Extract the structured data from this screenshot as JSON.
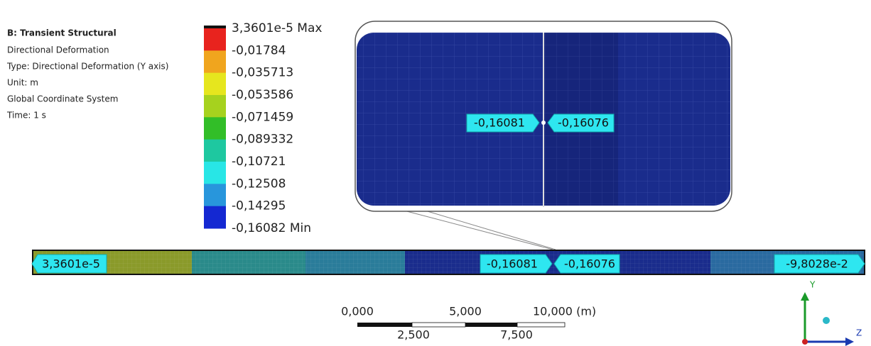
{
  "header": {
    "title": "B: Transient Structural",
    "lines": [
      "Directional Deformation",
      "Type: Directional Deformation (Y axis)",
      "Unit: m",
      "Global Coordinate System",
      "Time: 1 s"
    ]
  },
  "legend": {
    "labels": [
      "3,3601e-5 Max",
      "-0,01784",
      "-0,035713",
      "-0,053586",
      "-0,071459",
      "-0,089332",
      "-0,10721",
      "-0,12508",
      "-0,14295",
      "-0,16082 Min"
    ],
    "colors": [
      "#e8231e",
      "#f0a51e",
      "#e6e61e",
      "#a6d21e",
      "#32be28",
      "#1ec8a0",
      "#28e6e6",
      "#2896dc",
      "#1428d2"
    ]
  },
  "zoom": {
    "probes": [
      "-0,16081",
      "-0,16076"
    ]
  },
  "beam": {
    "probes": [
      "3,3601e-5",
      "-0,16081",
      "-0,16076",
      "-9,8028e-2"
    ]
  },
  "scale_bar": {
    "top_labels": [
      "0,000",
      "5,000",
      "10,000 (m)"
    ],
    "bottom_labels": [
      "2,500",
      "7,500"
    ]
  },
  "triad": {
    "y": "Y",
    "z": "Z"
  }
}
